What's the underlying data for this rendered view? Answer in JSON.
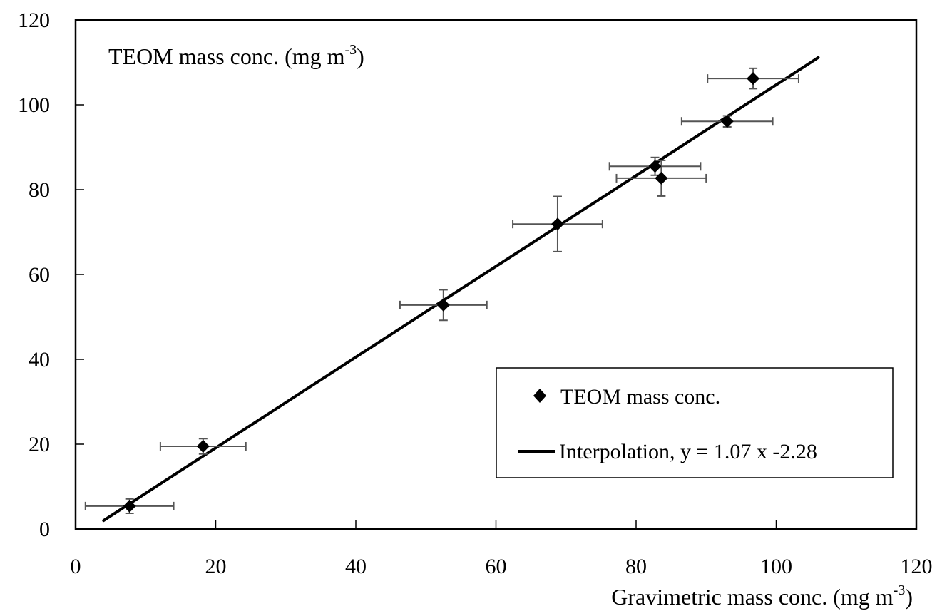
{
  "chart_data": {
    "type": "scatter",
    "title": "",
    "ylabel": "TEOM mass conc.  (mg m",
    "ylabel_sup": "-3",
    "ylabel_close": ")",
    "xlabel": "Gravimetric mass conc. (mg m",
    "xlabel_sup": "-3",
    "xlabel_close": ")",
    "xlim": [
      0,
      120
    ],
    "ylim": [
      0,
      120
    ],
    "xticks": [
      0,
      20,
      40,
      60,
      80,
      100,
      120
    ],
    "yticks": [
      0,
      20,
      40,
      60,
      80,
      100,
      120
    ],
    "xtick_labels": [
      "0",
      "20",
      "40",
      "60",
      "80",
      "100",
      "120"
    ],
    "ytick_labels": [
      "0",
      "20",
      "40",
      "60",
      "80",
      "100",
      "120"
    ],
    "grid": false,
    "legend_position": "bottom-right",
    "series": [
      {
        "name": "TEOM mass conc.",
        "kind": "points",
        "marker": "diamond",
        "color": "#000000",
        "errorbar_color": "#555555",
        "points": [
          {
            "x": 7.7,
            "y": 5.4,
            "xerr": 6.3,
            "yerr": 1.7
          },
          {
            "x": 18.2,
            "y": 19.5,
            "xerr": 6.1,
            "yerr": 1.8
          },
          {
            "x": 52.5,
            "y": 52.8,
            "xerr": 6.2,
            "yerr": 3.6
          },
          {
            "x": 68.8,
            "y": 71.9,
            "xerr": 6.4,
            "yerr": 6.5
          },
          {
            "x": 82.7,
            "y": 85.5,
            "xerr": 6.5,
            "yerr": 2.1
          },
          {
            "x": 83.6,
            "y": 82.7,
            "xerr": 6.4,
            "yerr": 4.2
          },
          {
            "x": 93.0,
            "y": 96.1,
            "xerr": 6.5,
            "yerr": 1.3
          },
          {
            "x": 96.7,
            "y": 106.2,
            "xerr": 6.5,
            "yerr": 2.4
          }
        ]
      },
      {
        "name": "Interpolation, y = 1.07 x -2.28",
        "kind": "line",
        "color": "#000000",
        "slope": 1.07,
        "intercept": -2.28,
        "x_range": [
          4,
          106
        ]
      }
    ],
    "legend": [
      {
        "label": "TEOM mass conc.",
        "symbol": "diamond"
      },
      {
        "label": "Interpolation, y = 1.07 x -2.28",
        "symbol": "line"
      }
    ]
  }
}
